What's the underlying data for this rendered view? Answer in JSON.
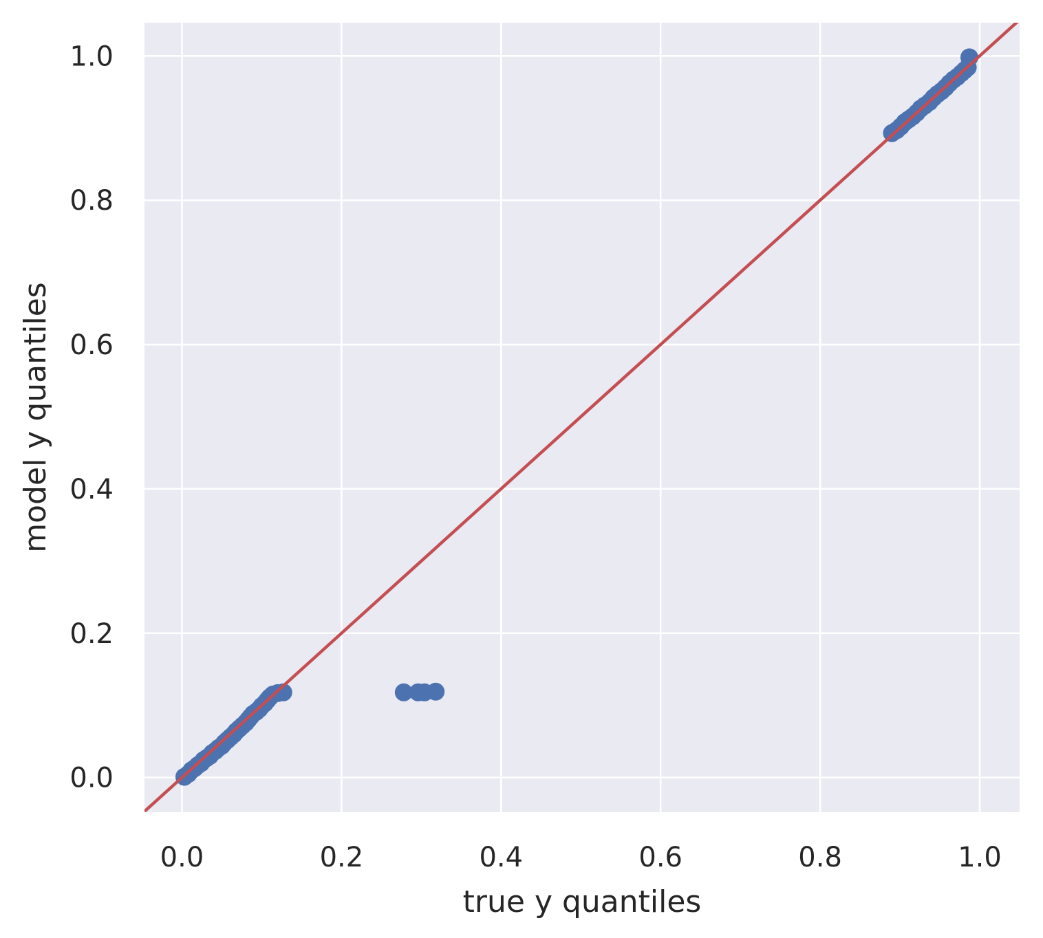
{
  "chart_data": {
    "type": "scatter",
    "title": "",
    "xlabel": "true y quantiles",
    "ylabel": "model y quantiles",
    "xlim": [
      -0.047,
      1.05
    ],
    "ylim": [
      -0.048,
      1.046
    ],
    "xticks": [
      0.0,
      0.2,
      0.4,
      0.6,
      0.8,
      1.0
    ],
    "xtick_labels": [
      "0.0",
      "0.2",
      "0.4",
      "0.6",
      "0.8",
      "1.0"
    ],
    "yticks": [
      0.0,
      0.2,
      0.4,
      0.6,
      0.8,
      1.0
    ],
    "ytick_labels": [
      "0.0",
      "0.2",
      "0.4",
      "0.6",
      "0.8",
      "1.0"
    ],
    "grid": true,
    "background_color": "#eaeaf2",
    "grid_color": "#ffffff",
    "series": [
      {
        "kind": "points",
        "color": "#4c72b0",
        "points": [
          [
            0.003,
            0.001
          ],
          [
            0.008,
            0.005
          ],
          [
            0.012,
            0.01
          ],
          [
            0.016,
            0.013
          ],
          [
            0.02,
            0.017
          ],
          [
            0.024,
            0.02
          ],
          [
            0.027,
            0.024
          ],
          [
            0.031,
            0.027
          ],
          [
            0.035,
            0.03
          ],
          [
            0.038,
            0.034
          ],
          [
            0.042,
            0.037
          ],
          [
            0.046,
            0.041
          ],
          [
            0.05,
            0.044
          ],
          [
            0.053,
            0.048
          ],
          [
            0.057,
            0.052
          ],
          [
            0.061,
            0.056
          ],
          [
            0.065,
            0.06
          ],
          [
            0.068,
            0.064
          ],
          [
            0.072,
            0.068
          ],
          [
            0.076,
            0.072
          ],
          [
            0.08,
            0.076
          ],
          [
            0.083,
            0.08
          ],
          [
            0.086,
            0.084
          ],
          [
            0.089,
            0.088
          ],
          [
            0.093,
            0.091
          ],
          [
            0.097,
            0.095
          ],
          [
            0.1,
            0.099
          ],
          [
            0.104,
            0.103
          ],
          [
            0.107,
            0.107
          ],
          [
            0.11,
            0.111
          ],
          [
            0.114,
            0.115
          ],
          [
            0.12,
            0.117
          ],
          [
            0.127,
            0.118
          ],
          [
            0.278,
            0.118
          ],
          [
            0.296,
            0.118
          ],
          [
            0.304,
            0.118
          ],
          [
            0.318,
            0.119
          ],
          [
            0.89,
            0.893
          ],
          [
            0.896,
            0.897
          ],
          [
            0.901,
            0.902
          ],
          [
            0.906,
            0.908
          ],
          [
            0.911,
            0.912
          ],
          [
            0.916,
            0.916
          ],
          [
            0.921,
            0.921
          ],
          [
            0.926,
            0.927
          ],
          [
            0.931,
            0.931
          ],
          [
            0.937,
            0.936
          ],
          [
            0.942,
            0.942
          ],
          [
            0.947,
            0.947
          ],
          [
            0.952,
            0.951
          ],
          [
            0.957,
            0.956
          ],
          [
            0.962,
            0.962
          ],
          [
            0.967,
            0.967
          ],
          [
            0.972,
            0.971
          ],
          [
            0.977,
            0.976
          ],
          [
            0.981,
            0.98
          ],
          [
            0.985,
            0.984
          ],
          [
            0.987,
            0.998
          ]
        ]
      },
      {
        "kind": "line",
        "color": "#c44e52",
        "points": [
          [
            -0.047,
            -0.047
          ],
          [
            1.05,
            1.05
          ]
        ]
      }
    ]
  }
}
